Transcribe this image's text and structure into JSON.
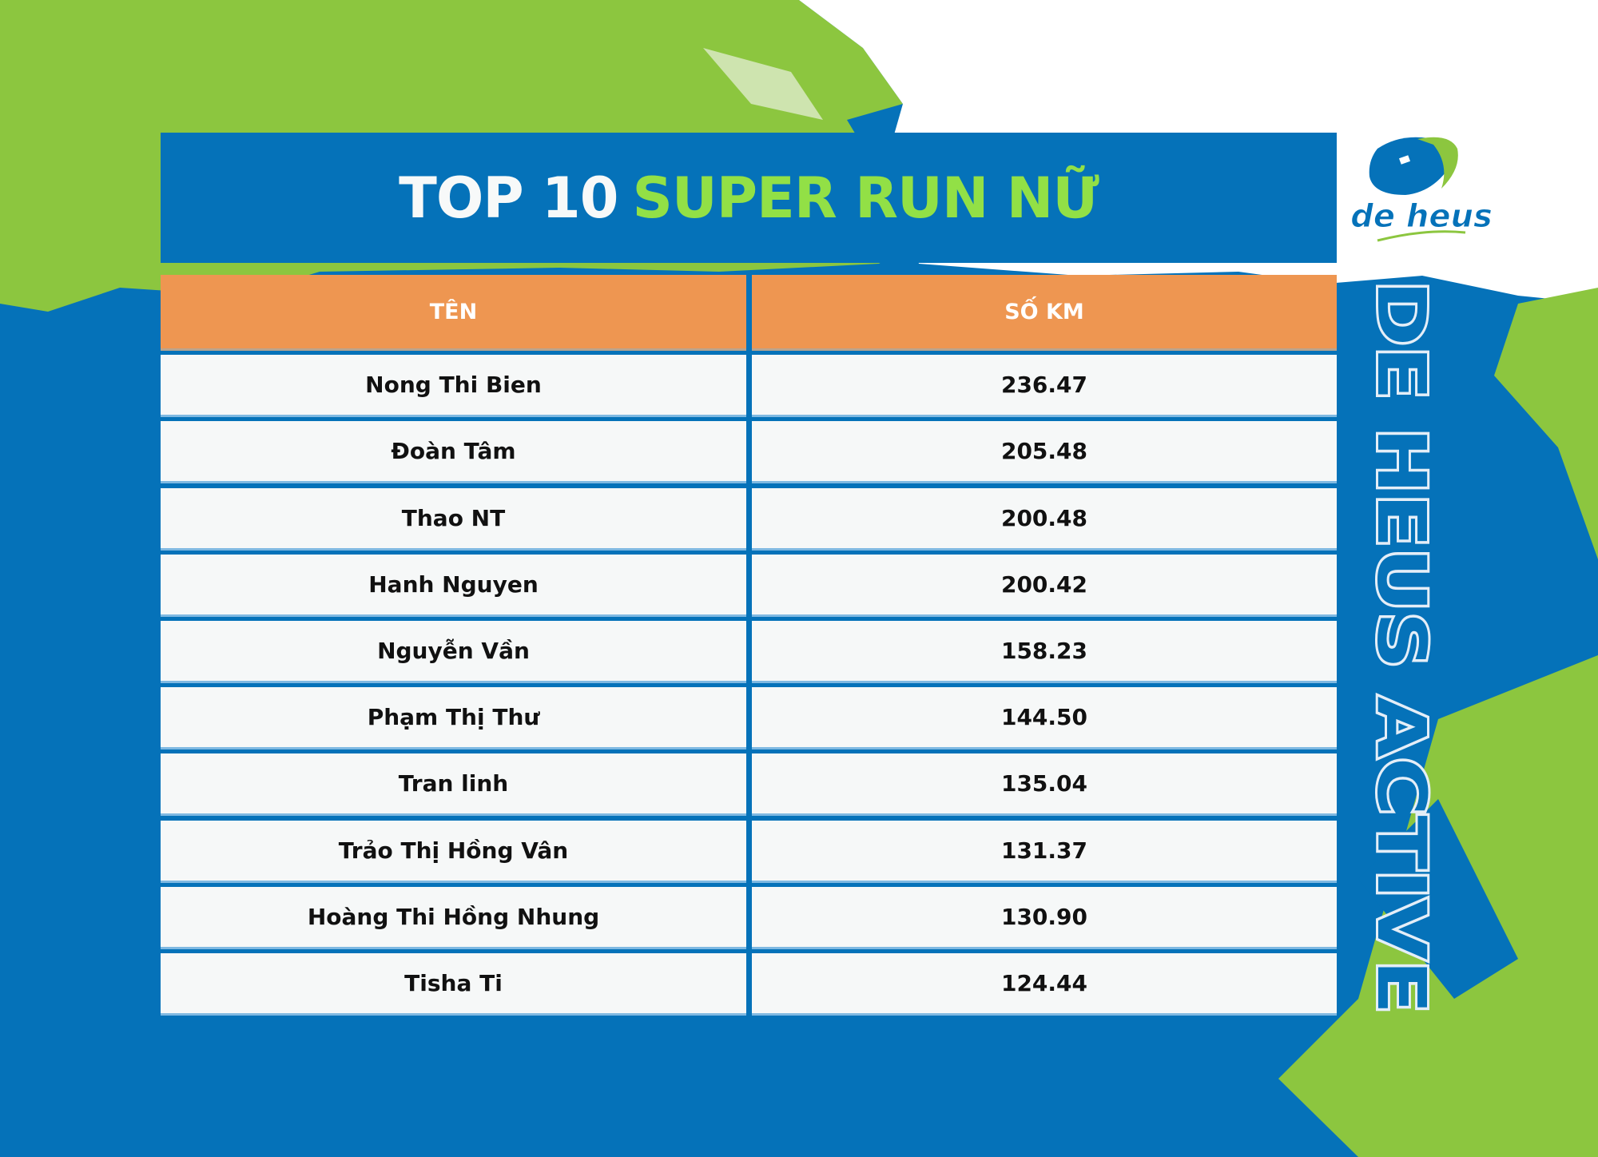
{
  "title": {
    "white_part": "TOP 10",
    "green_part": "SUPER RUN NỮ"
  },
  "brand": {
    "logo_text": "de heus",
    "vertical_text": "DE HEUS ACTIVE"
  },
  "colors": {
    "blue": "#0572b9",
    "green": "#8cc63f",
    "title_green": "#92e046",
    "header_orange": "#ee9651",
    "row_bg": "#f6f8f8"
  },
  "table": {
    "headers": [
      "TÊN",
      "SỐ KM"
    ],
    "rows": [
      {
        "name": "Nong Thi Bien",
        "km": "236.47"
      },
      {
        "name": "Đoàn Tâm",
        "km": "205.48"
      },
      {
        "name": "Thao NT",
        "km": "200.48"
      },
      {
        "name": "Hanh Nguyen",
        "km": "200.42"
      },
      {
        "name": "Nguyễn Vần",
        "km": "158.23"
      },
      {
        "name": "Phạm Thị Thư",
        "km": "144.50"
      },
      {
        "name": "Tran linh",
        "km": "135.04"
      },
      {
        "name": "Trảo Thị Hồng Vân",
        "km": "131.37"
      },
      {
        "name": "Hoàng Thi Hồng Nhung",
        "km": "130.90"
      },
      {
        "name": "Tisha Ti",
        "km": "124.44"
      }
    ]
  }
}
